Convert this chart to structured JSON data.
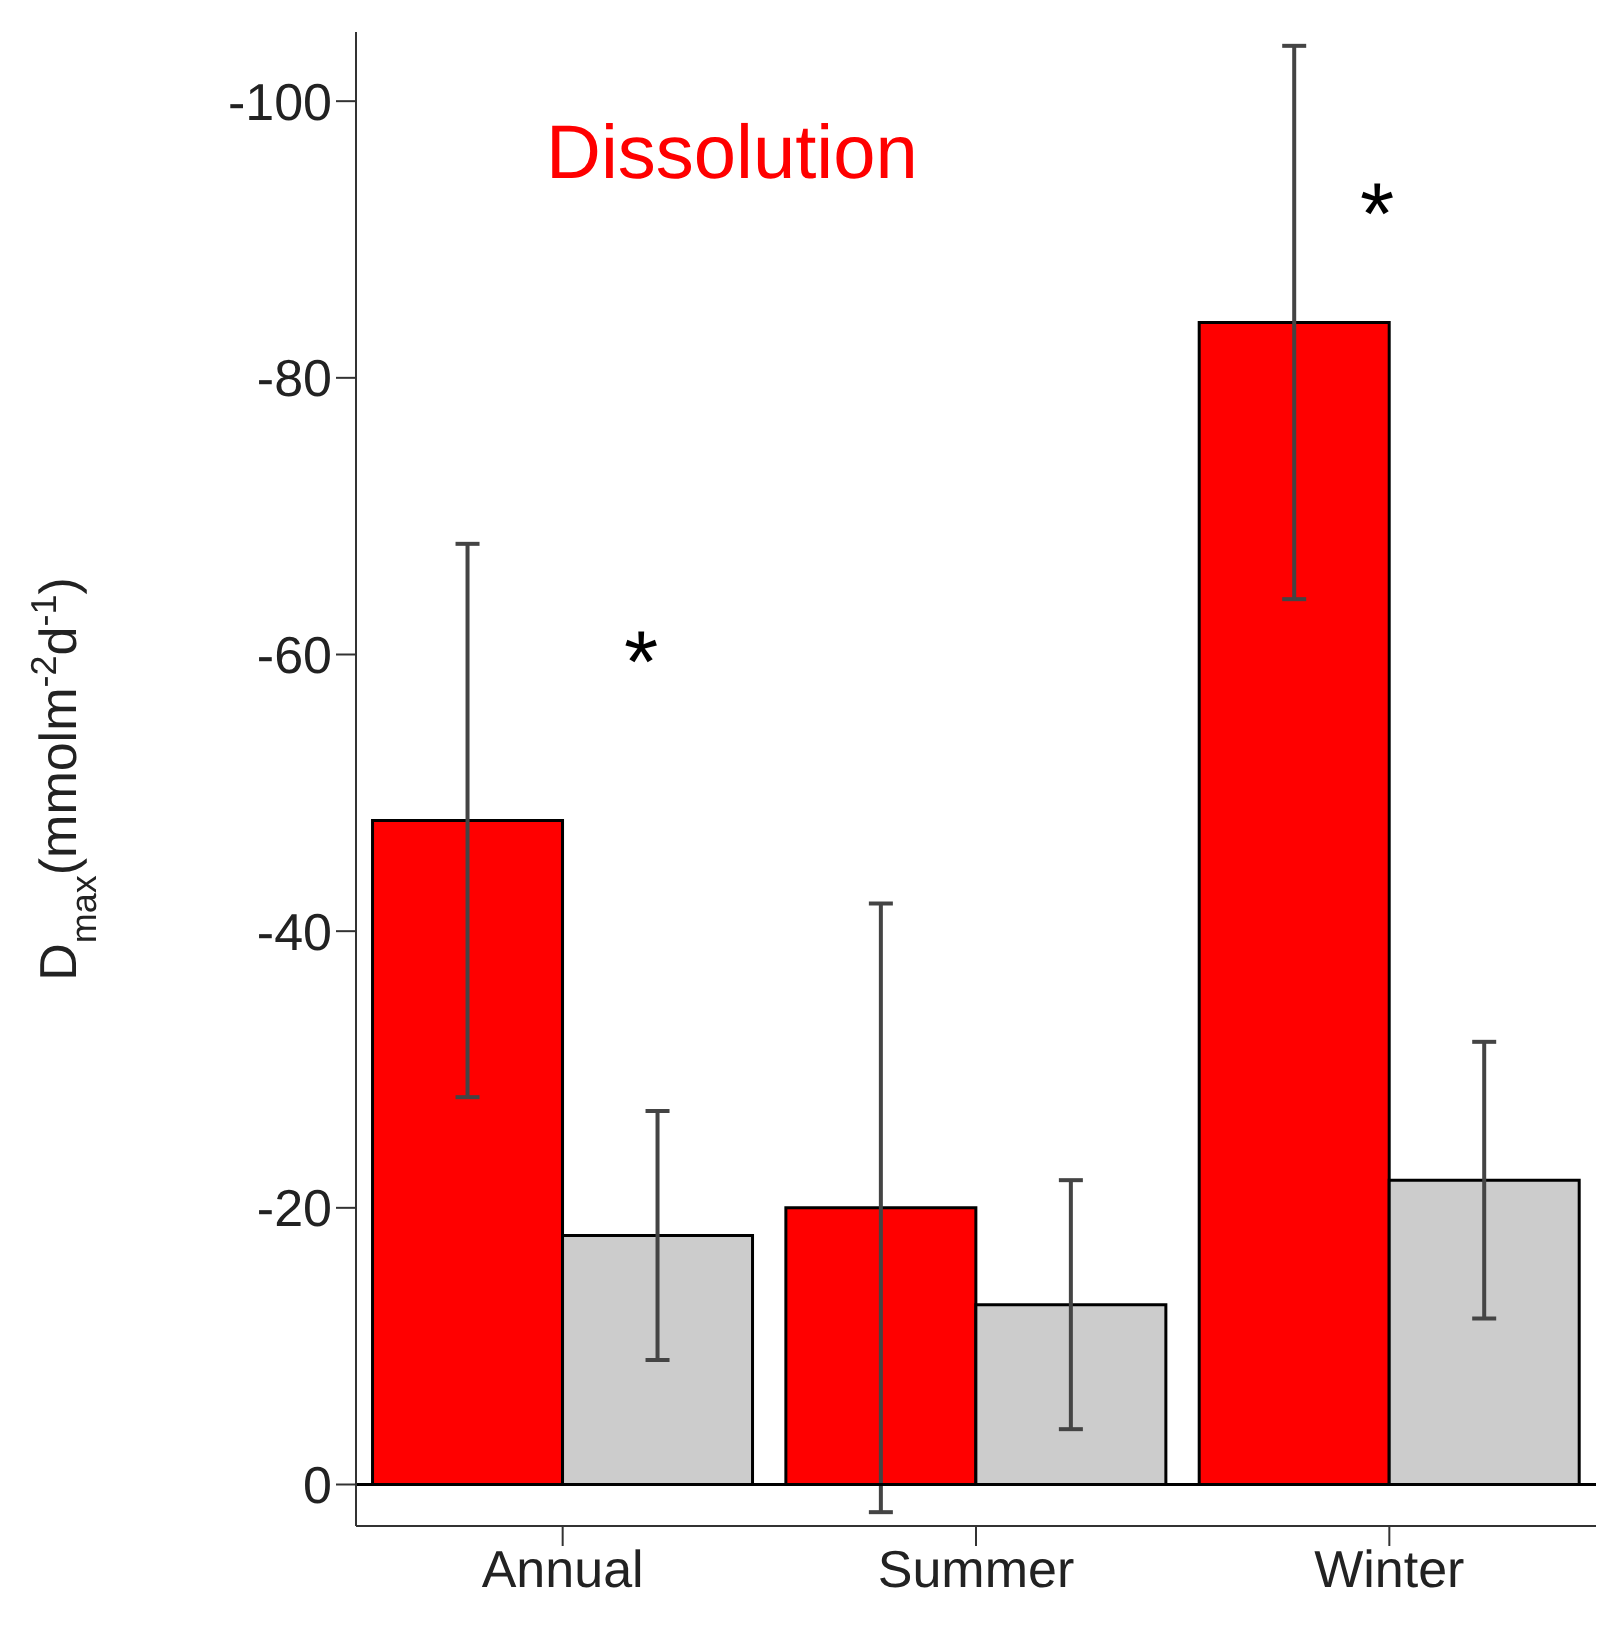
{
  "chart_data": {
    "type": "bar",
    "ylabel": "D$_{max}$(mmolm$^{-2}$d$^{-1}$)",
    "categories": [
      "Annual",
      "Summer",
      "Winter"
    ],
    "series": [
      {
        "color": "#ff0000",
        "values": [
          -48,
          -20,
          -84
        ],
        "errors": [
          20,
          22,
          20
        ]
      },
      {
        "color": "#cccccc",
        "values": [
          -18,
          -13,
          -22
        ],
        "errors": [
          9,
          9,
          10
        ]
      }
    ],
    "ylim": [
      3,
      -105
    ],
    "yticks": [
      0,
      -20,
      -40,
      -60,
      -80,
      -100
    ],
    "grid": false,
    "legend": false,
    "ref_lines": [
      {
        "axis": "y",
        "value": 0
      }
    ],
    "annotations": [
      "Dissolution",
      "*",
      "*"
    ]
  }
}
